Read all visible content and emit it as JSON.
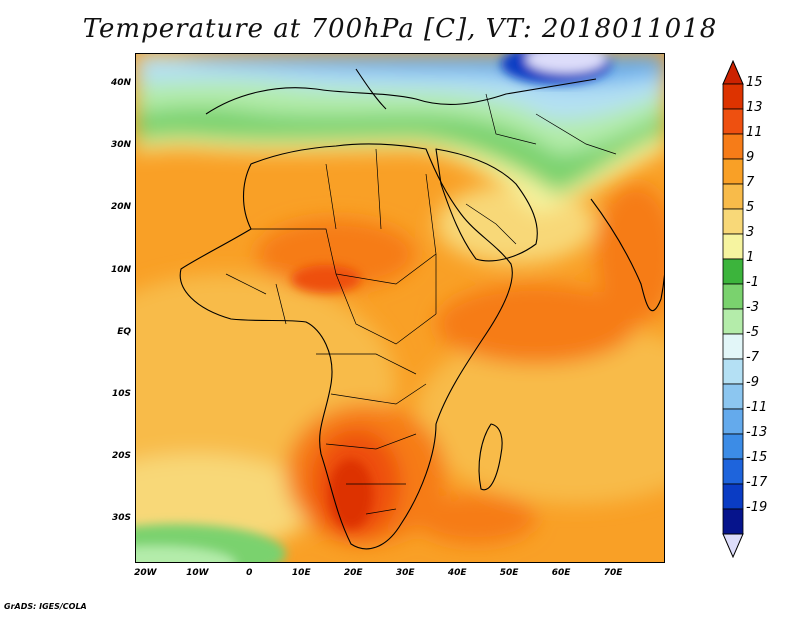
{
  "title": "Temperature at 700hPa [C], VT: 2018011018",
  "footer": "GrADS: IGES/COLA",
  "map": {
    "lon_range": [
      -22,
      80
    ],
    "lat_range": [
      -37,
      45
    ],
    "lat_ticks": [
      {
        "value": 40,
        "label": "40N"
      },
      {
        "value": 30,
        "label": "30N"
      },
      {
        "value": 20,
        "label": "20N"
      },
      {
        "value": 10,
        "label": "10N"
      },
      {
        "value": 0,
        "label": "EQ"
      },
      {
        "value": -10,
        "label": "10S"
      },
      {
        "value": -20,
        "label": "20S"
      },
      {
        "value": -30,
        "label": "30S"
      }
    ],
    "lon_ticks": [
      {
        "value": -20,
        "label": "20W"
      },
      {
        "value": -10,
        "label": "10W"
      },
      {
        "value": 0,
        "label": "0"
      },
      {
        "value": 10,
        "label": "10E"
      },
      {
        "value": 20,
        "label": "20E"
      },
      {
        "value": 30,
        "label": "30E"
      },
      {
        "value": 40,
        "label": "40E"
      },
      {
        "value": 50,
        "label": "50E"
      },
      {
        "value": 60,
        "label": "60E"
      },
      {
        "value": 70,
        "label": "70E"
      }
    ]
  },
  "colorbar": {
    "levels": [
      {
        "label": "15",
        "color": "#dd3300"
      },
      {
        "label": "13",
        "color": "#ee5010"
      },
      {
        "label": "11",
        "color": "#f67c18"
      },
      {
        "label": "9",
        "color": "#f9a026"
      },
      {
        "label": "7",
        "color": "#f8bb4a"
      },
      {
        "label": "5",
        "color": "#f8d878"
      },
      {
        "label": "3",
        "color": "#f6f4a0"
      },
      {
        "label": "1",
        "color": "#3cb43c"
      },
      {
        "label": "-1",
        "color": "#7ad26e"
      },
      {
        "label": "-3",
        "color": "#b4ecaa"
      },
      {
        "label": "-5",
        "color": "#e2f6f8"
      },
      {
        "label": "-7",
        "color": "#b4e0f4"
      },
      {
        "label": "-9",
        "color": "#8cc6f0"
      },
      {
        "label": "-11",
        "color": "#64aaec"
      },
      {
        "label": "-13",
        "color": "#3c8ce6"
      },
      {
        "label": "-15",
        "color": "#1e64dc"
      },
      {
        "label": "-17",
        "color": "#0a3cc4"
      },
      {
        "label": "-19",
        "color": "#06148c"
      }
    ],
    "top_color": "#cc2200",
    "bottom_color": "#ddddfa"
  }
}
